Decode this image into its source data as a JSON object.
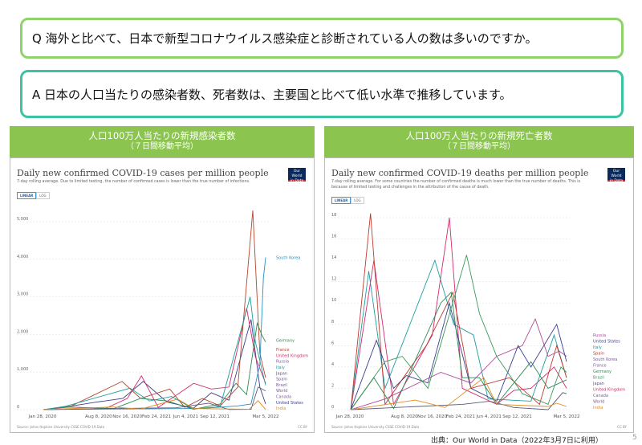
{
  "question": "Q  海外と比べて、日本で新型コロナウイルス感染症と診断されている人の数は多いのですか。",
  "answer": "A  日本の人口当たりの感染者数、死者数は、主要国と比べて低い水準で推移しています。",
  "footer": "出典：Our World in Data（2022年3月7日に利用）",
  "page_number": "5",
  "logo_text": "Our World in Data",
  "toggle": {
    "linear": "LINEAR",
    "log": "LOG"
  },
  "license": "CC BY",
  "source": "Source: Johns Hopkins University CSSE COVID-19 Data",
  "chart_data": [
    {
      "type": "line",
      "header": "人口100万人当たりの新規感染者数",
      "header_sub": "（７日間移動平均）",
      "title": "Daily new confirmed COVID-19 cases per million people",
      "subtitle": "7-day rolling average. Due to limited testing, the number of confirmed cases is lower than the true number of infections.",
      "ylim": [
        0,
        5000
      ],
      "yticks": [
        0,
        1000,
        2000,
        3000,
        4000,
        5000
      ],
      "ytick_labels": [
        "0",
        "1,000",
        "2,000",
        "3,000",
        "4,000",
        "5,000"
      ],
      "xlim": [
        0.9,
        26.15
      ],
      "x_unit": "months since Jan 2020",
      "xticks": [
        {
          "x": 0.9,
          "label": "Jan 28, 2020"
        },
        {
          "x": 7.25,
          "label": "Aug 8, 2020"
        },
        {
          "x": 10.5,
          "label": "Nov 16, 2020"
        },
        {
          "x": 13.8,
          "label": "Feb 24, 2021"
        },
        {
          "x": 17.1,
          "label": "Jun 4, 2021"
        },
        {
          "x": 20.4,
          "label": "Sep 12, 2021"
        },
        {
          "x": 26.15,
          "label": "Mar 5, 2022"
        }
      ],
      "legend": [
        "South Korea",
        "Germany",
        "France",
        "United Kingdom",
        "Russia",
        "Italy",
        "Japan",
        "Spain",
        "Brazil",
        "World",
        "Canada",
        "United States",
        "India"
      ],
      "series": [
        {
          "name": "United States",
          "color": "#3d3f8f",
          "points": [
            [
              1,
              0
            ],
            [
              4,
              90
            ],
            [
              7,
              200
            ],
            [
              10,
              300
            ],
            [
              12.3,
              750
            ],
            [
              15,
              200
            ],
            [
              18,
              40
            ],
            [
              20,
              450
            ],
            [
              22,
              250
            ],
            [
              24.5,
              2400
            ],
            [
              25.5,
              600
            ],
            [
              26.15,
              150
            ]
          ]
        },
        {
          "name": "United Kingdom",
          "color": "#d6296d",
          "points": [
            [
              1,
              0
            ],
            [
              4,
              70
            ],
            [
              8,
              30
            ],
            [
              10.5,
              300
            ],
            [
              12.1,
              900
            ],
            [
              14,
              60
            ],
            [
              18,
              700
            ],
            [
              20,
              550
            ],
            [
              22,
              600
            ],
            [
              24,
              2700
            ],
            [
              25,
              1400
            ],
            [
              26.15,
              700
            ]
          ]
        },
        {
          "name": "France",
          "color": "#b4462d",
          "points": [
            [
              1,
              0
            ],
            [
              4,
              80
            ],
            [
              9.9,
              750
            ],
            [
              12,
              300
            ],
            [
              15.3,
              550
            ],
            [
              17,
              60
            ],
            [
              19,
              300
            ],
            [
              21,
              100
            ],
            [
              23,
              600
            ],
            [
              24.7,
              5300
            ],
            [
              25.5,
              1500
            ],
            [
              26.15,
              850
            ]
          ]
        },
        {
          "name": "South Korea",
          "color": "#2a8fbf",
          "points": [
            [
              1,
              0
            ],
            [
              3,
              10
            ],
            [
              12,
              20
            ],
            [
              19,
              35
            ],
            [
              23,
              100
            ],
            [
              24.5,
              150
            ],
            [
              25.5,
              1200
            ],
            [
              25.9,
              3500
            ],
            [
              26.15,
              4050
            ]
          ]
        },
        {
          "name": "Germany",
          "color": "#2e8b57",
          "points": [
            [
              1,
              0
            ],
            [
              3.5,
              70
            ],
            [
              9,
              30
            ],
            [
              12,
              300
            ],
            [
              15,
              230
            ],
            [
              18,
              10
            ],
            [
              21,
              150
            ],
            [
              22.8,
              700
            ],
            [
              24,
              400
            ],
            [
              25.2,
              2300
            ],
            [
              25.7,
              2000
            ],
            [
              26.15,
              1800
            ]
          ]
        },
        {
          "name": "Japan",
          "color": "#5a5a7a",
          "points": [
            [
              1,
              0
            ],
            [
              12.5,
              40
            ],
            [
              16,
              50
            ],
            [
              19.7,
              170
            ],
            [
              22,
              5
            ],
            [
              24.5,
              10
            ],
            [
              25.3,
              600
            ],
            [
              26.15,
              500
            ]
          ]
        },
        {
          "name": "Italy",
          "color": "#1f9d9d",
          "points": [
            [
              1,
              0
            ],
            [
              3.5,
              90
            ],
            [
              10.8,
              570
            ],
            [
              13,
              230
            ],
            [
              15.5,
              350
            ],
            [
              18,
              20
            ],
            [
              21,
              80
            ],
            [
              24.4,
              3000
            ],
            [
              25,
              1800
            ],
            [
              26.15,
              650
            ]
          ]
        },
        {
          "name": "India",
          "color": "#e08a1e",
          "points": [
            [
              1,
              0
            ],
            [
              8.8,
              70
            ],
            [
              12,
              15
            ],
            [
              16.2,
              280
            ],
            [
              18,
              30
            ],
            [
              24.3,
              10
            ],
            [
              25.3,
              240
            ],
            [
              26.15,
              5
            ]
          ]
        }
      ]
    },
    {
      "type": "line",
      "header": "人口100万人当たりの新規死亡者数",
      "header_sub": "（７日間移動平均）",
      "title": "Daily new confirmed COVID-19 deaths per million people",
      "subtitle": "7-day rolling average. For some countries the number of confirmed deaths is much lower than the true number of deaths. This is because of limited testing and challenges in the attribution of the cause of death.",
      "ylim": [
        0,
        18
      ],
      "yticks": [
        0,
        2,
        4,
        6,
        8,
        10,
        12,
        14,
        16,
        18
      ],
      "ytick_labels": [
        "0",
        "2",
        "4",
        "6",
        "8",
        "10",
        "12",
        "14",
        "16",
        "18"
      ],
      "xlim": [
        0.9,
        26.15
      ],
      "x_unit": "months since Jan 2020",
      "xticks": [
        {
          "x": 0.9,
          "label": "Jan 28, 2020"
        },
        {
          "x": 7.25,
          "label": "Aug 8, 2020"
        },
        {
          "x": 10.5,
          "label": "Nov 16, 2020"
        },
        {
          "x": 13.8,
          "label": "Feb 24, 2021"
        },
        {
          "x": 17.1,
          "label": "Jun 4, 2021"
        },
        {
          "x": 20.4,
          "label": "Sep 12, 2021"
        },
        {
          "x": 26.15,
          "label": "Mar 5, 2022"
        }
      ],
      "legend": [
        "Russia",
        "United States",
        "Italy",
        "Spain",
        "South Korea",
        "France",
        "Germany",
        "Brazil",
        "Japan",
        "United Kingdom",
        "Canada",
        "World",
        "India"
      ],
      "series": [
        {
          "name": "United Kingdom",
          "color": "#d6296d",
          "points": [
            [
              1,
              0
            ],
            [
              3.7,
              14
            ],
            [
              6,
              0.5
            ],
            [
              10.5,
              7
            ],
            [
              12.5,
              18
            ],
            [
              14,
              2
            ],
            [
              18,
              0.5
            ],
            [
              20,
              1.8
            ],
            [
              22,
              2
            ],
            [
              24.7,
              4
            ],
            [
              26.15,
              2
            ]
          ]
        },
        {
          "name": "Italy",
          "color": "#1f9d9d",
          "points": [
            [
              1,
              0
            ],
            [
              3.1,
              13
            ],
            [
              5,
              2
            ],
            [
              10.8,
              14
            ],
            [
              13,
              8
            ],
            [
              15.3,
              7
            ],
            [
              17,
              1
            ],
            [
              22,
              0.8
            ],
            [
              24.7,
              7
            ],
            [
              26.15,
              3
            ]
          ]
        },
        {
          "name": "Spain",
          "color": "#c0392b",
          "points": [
            [
              1,
              0
            ],
            [
              3.3,
              18.4
            ],
            [
              5,
              0.5
            ],
            [
              8,
              4
            ],
            [
              9.8,
              6
            ],
            [
              12.9,
              11
            ],
            [
              15,
              2
            ],
            [
              19.5,
              3
            ],
            [
              23,
              0.5
            ],
            [
              25,
              6
            ],
            [
              26.15,
              3
            ]
          ]
        },
        {
          "name": "Russia",
          "color": "#b04a9a",
          "points": [
            [
              1,
              0
            ],
            [
              5,
              1
            ],
            [
              11.5,
              3.5
            ],
            [
              15,
              2.5
            ],
            [
              18,
              5
            ],
            [
              21,
              6
            ],
            [
              22.5,
              8.5
            ],
            [
              24,
              5
            ],
            [
              25.3,
              5.5
            ],
            [
              26.15,
              5
            ]
          ]
        },
        {
          "name": "United States",
          "color": "#3d3f8f",
          "points": [
            [
              1,
              0
            ],
            [
              4,
              6.5
            ],
            [
              6,
              2
            ],
            [
              7.5,
              3.2
            ],
            [
              10,
              2.5
            ],
            [
              12.5,
              10
            ],
            [
              15,
              2
            ],
            [
              18,
              0.8
            ],
            [
              20.5,
              6
            ],
            [
              22,
              4
            ],
            [
              25,
              8
            ],
            [
              26.15,
              4.5
            ]
          ]
        },
        {
          "name": "Brazil",
          "color": "#3a9a5a",
          "points": [
            [
              1,
              0
            ],
            [
              5,
              4.5
            ],
            [
              7,
              5
            ],
            [
              10,
              2
            ],
            [
              14.5,
              14.5
            ],
            [
              16,
              9
            ],
            [
              18,
              5
            ],
            [
              21,
              1.5
            ],
            [
              24,
              0.5
            ],
            [
              25.5,
              4
            ],
            [
              26.15,
              3.5
            ]
          ]
        },
        {
          "name": "Japan",
          "color": "#5a5a7a",
          "points": [
            [
              1,
              0
            ],
            [
              14,
              0.5
            ],
            [
              17.2,
              0.8
            ],
            [
              20,
              0.2
            ],
            [
              24,
              0
            ],
            [
              25.7,
              1.6
            ],
            [
              26.15,
              1.5
            ]
          ]
        },
        {
          "name": "Germany",
          "color": "#2e8b57",
          "points": [
            [
              1,
              0
            ],
            [
              3.7,
              3
            ],
            [
              6,
              0.1
            ],
            [
              11.5,
              10
            ],
            [
              12.7,
              11
            ],
            [
              14,
              3
            ],
            [
              16,
              3
            ],
            [
              18,
              0.5
            ],
            [
              22,
              4.5
            ],
            [
              24,
              2
            ],
            [
              26.15,
              2.8
            ]
          ]
        },
        {
          "name": "India",
          "color": "#e08a1e",
          "points": [
            [
              1,
              0
            ],
            [
              8.5,
              0.9
            ],
            [
              12,
              0.2
            ],
            [
              16.5,
              3
            ],
            [
              18,
              0.5
            ],
            [
              24,
              0.3
            ],
            [
              25,
              0.6
            ],
            [
              26.15,
              0.3
            ]
          ]
        }
      ]
    }
  ]
}
